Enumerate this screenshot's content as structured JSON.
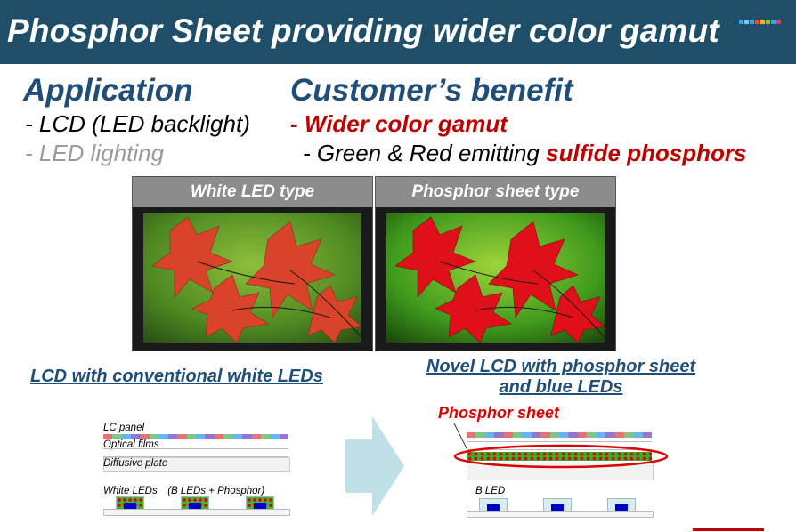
{
  "header": {
    "title": "Phosphor Sheet providing wider color gamut",
    "logo_colors": [
      "#3aa6dd",
      "#7fc7e8",
      "#3aa6dd",
      "#e94f2c",
      "#f3b234",
      "#8bc34a",
      "#3aa6dd",
      "#c94080"
    ],
    "logo_icon": "company-logo-icon"
  },
  "application": {
    "heading": "Application",
    "items": [
      "- LCD (LED backlight)",
      "- LED lighting"
    ]
  },
  "benefit": {
    "heading": "Customer’s benefit",
    "line1": "- Wider color gamut",
    "line2_prefix": "- Green & Red emitting ",
    "line2_emphasis": "sulfide phosphors"
  },
  "photos": {
    "left_label": "White LED type",
    "right_label": "Phosphor sheet type"
  },
  "diagrams": {
    "left_caption": "LCD with conventional white LEDs",
    "right_caption_line1": "Novel LCD with phosphor sheet",
    "right_caption_line2": "and blue LEDs",
    "lc_panel": "LC panel",
    "optical_films": "Optical films",
    "diffusive_plate": "Diffusive plate",
    "white_leds": "White LEDs　(B LEDs + Phosphor)",
    "phosphor_sheet": "Phosphor sheet",
    "b_led": "B LED"
  }
}
